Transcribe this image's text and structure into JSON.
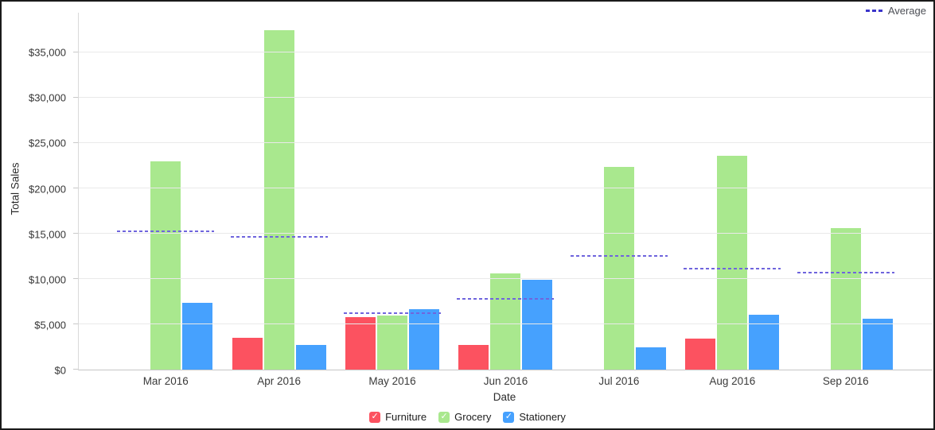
{
  "chart_data": {
    "type": "bar",
    "title": "",
    "xlabel": "Date",
    "ylabel": "Total Sales",
    "grid": true,
    "ylim": [
      0,
      39400
    ],
    "y_ticks": [
      {
        "label": "$0",
        "value": 0
      },
      {
        "label": "$5,000",
        "value": 5000
      },
      {
        "label": "$10,000",
        "value": 10000
      },
      {
        "label": "$15,000",
        "value": 15000
      },
      {
        "label": "$20,000",
        "value": 20000
      },
      {
        "label": "$25,000",
        "value": 25000
      },
      {
        "label": "$30,000",
        "value": 30000
      },
      {
        "label": "$35,000",
        "value": 35000
      }
    ],
    "categories": [
      "Mar 2016",
      "Apr 2016",
      "May 2016",
      "Jun 2016",
      "Jul 2016",
      "Aug 2016",
      "Sep 2016"
    ],
    "series": [
      {
        "name": "Furniture",
        "color": "#fc5260",
        "values": [
          null,
          3500,
          5800,
          2700,
          null,
          3450,
          null
        ]
      },
      {
        "name": "Grocery",
        "color": "#a9e88e",
        "values": [
          23000,
          37500,
          6000,
          10600,
          22400,
          23600,
          15600
        ]
      },
      {
        "name": "Stationery",
        "color": "#46a1fe",
        "values": [
          7400,
          2700,
          6700,
          9900,
          2500,
          6100,
          5600
        ]
      }
    ],
    "average_line": {
      "name": "Average",
      "color": "#6f65dd",
      "values": [
        15200,
        14600,
        6170,
        7730,
        12450,
        11050,
        10600
      ]
    },
    "legend_position": "bottom",
    "legend_checkmark": "✓"
  }
}
